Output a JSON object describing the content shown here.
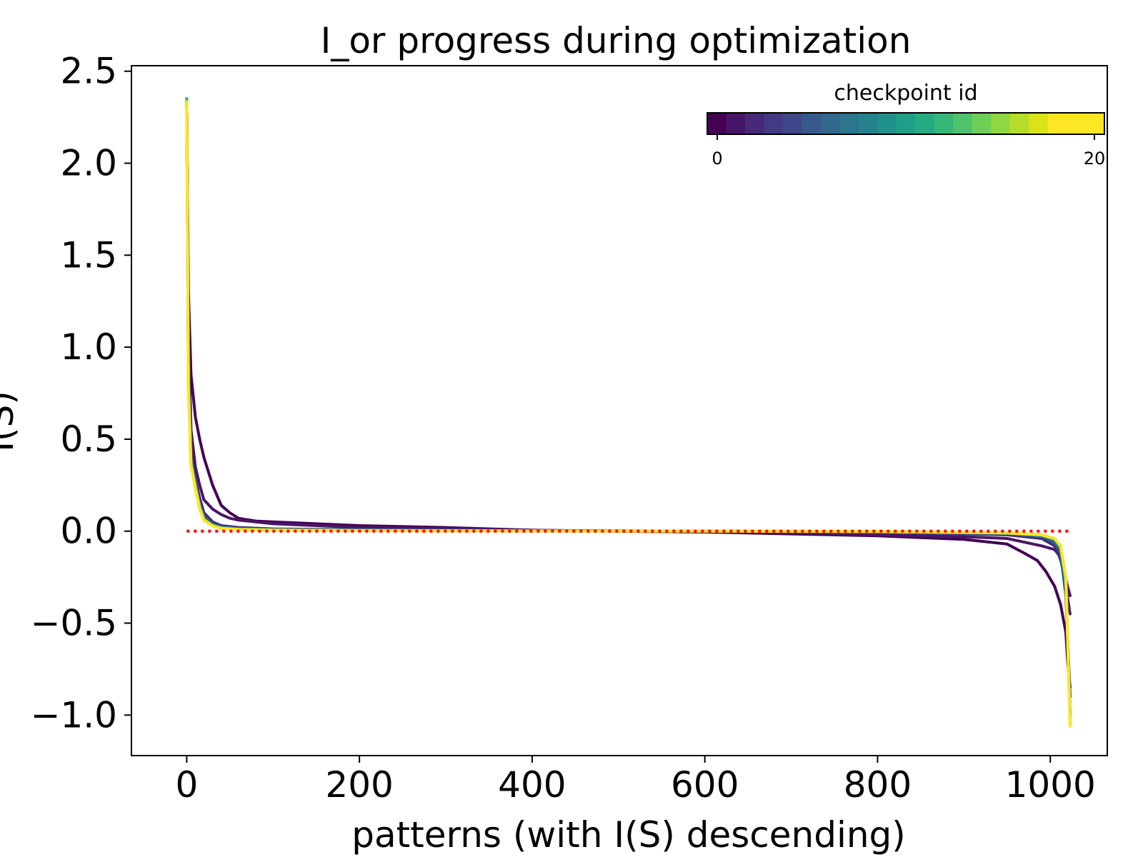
{
  "chart_data": {
    "type": "line",
    "title": "I_or progress during optimization",
    "xlabel": "patterns (with I(S) descending)",
    "ylabel": "I(S)",
    "xlim": [
      -64,
      1066
    ],
    "ylim": [
      -1.22,
      2.53
    ],
    "xticks": [
      0,
      200,
      400,
      600,
      800,
      1000
    ],
    "xtick_labels": [
      "0",
      "200",
      "400",
      "600",
      "800",
      "1000"
    ],
    "yticks": [
      -1.0,
      -0.5,
      0.0,
      0.5,
      1.0,
      1.5,
      2.0,
      2.5
    ],
    "ytick_labels": [
      "−1.0",
      "−0.5",
      "0.0",
      "0.5",
      "1.0",
      "1.5",
      "2.0",
      "2.5"
    ],
    "grid": false,
    "reference_line": {
      "y": 0.0,
      "color": "#ff0000",
      "style": "dotted",
      "x_range": [
        0,
        1023
      ]
    },
    "colorbar": {
      "label": "checkpoint id",
      "min": 0,
      "max": 20,
      "tick_labels": [
        "0",
        "20"
      ],
      "placement": "upper-right",
      "orientation": "horizontal",
      "colors": [
        "#440154",
        "#481668",
        "#482878",
        "#443983",
        "#3e4989",
        "#375a8c",
        "#31688e",
        "#2b758e",
        "#26828e",
        "#21918c",
        "#1f9e89",
        "#25ab82",
        "#35b779",
        "#4ec36b",
        "#6ece58",
        "#90d743",
        "#b5de2b",
        "#dae319",
        "#fde725",
        "#fde725",
        "#fde725"
      ]
    },
    "series": [
      {
        "checkpoint": 0,
        "color": "#440154",
        "x": [
          0,
          2,
          5,
          10,
          15,
          20,
          30,
          40,
          50,
          60,
          80,
          100,
          150,
          200,
          300,
          400,
          500,
          600,
          700,
          800,
          900,
          950,
          970,
          985,
          995,
          1005,
          1012,
          1018,
          1020,
          1023
        ],
        "y": [
          2.33,
          1.3,
          0.85,
          0.62,
          0.5,
          0.4,
          0.25,
          0.14,
          0.1,
          0.07,
          0.055,
          0.05,
          0.04,
          0.03,
          0.02,
          0.005,
          0.0,
          -0.005,
          -0.015,
          -0.025,
          -0.045,
          -0.07,
          -0.12,
          -0.16,
          -0.22,
          -0.3,
          -0.4,
          -0.55,
          -0.7,
          -0.85
        ]
      },
      {
        "checkpoint": 1,
        "color": "#481668",
        "x": [
          0,
          2,
          5,
          10,
          15,
          20,
          30,
          40,
          50,
          60,
          80,
          100,
          150,
          200,
          300,
          400,
          500,
          600,
          700,
          800,
          900,
          950,
          970,
          990,
          1005,
          1010,
          1015,
          1020,
          1023
        ],
        "y": [
          2.35,
          1.1,
          0.55,
          0.35,
          0.25,
          0.17,
          0.12,
          0.09,
          0.07,
          0.06,
          0.05,
          0.04,
          0.03,
          0.02,
          0.015,
          0.005,
          0.0,
          -0.005,
          -0.01,
          -0.02,
          -0.03,
          -0.04,
          -0.06,
          -0.08,
          -0.1,
          -0.13,
          -0.2,
          -0.3,
          -0.35
        ]
      },
      {
        "checkpoint": 2,
        "color": "#482878",
        "x": [
          0,
          2,
          5,
          10,
          15,
          20,
          30,
          40,
          60,
          100,
          200,
          400,
          600,
          800,
          950,
          990,
          1005,
          1012,
          1018,
          1023
        ],
        "y": [
          2.34,
          0.9,
          0.42,
          0.28,
          0.18,
          0.1,
          0.05,
          0.03,
          0.02,
          0.012,
          0.008,
          0.003,
          0.0,
          -0.005,
          -0.02,
          -0.04,
          -0.08,
          -0.15,
          -0.3,
          -0.45
        ]
      },
      {
        "checkpoint": 4,
        "color": "#3e4989",
        "x": [
          0,
          2,
          5,
          10,
          15,
          20,
          30,
          40,
          60,
          100,
          200,
          400,
          600,
          800,
          950,
          990,
          1005,
          1012,
          1018,
          1023
        ],
        "y": [
          2.34,
          0.85,
          0.4,
          0.26,
          0.15,
          0.08,
          0.04,
          0.025,
          0.015,
          0.01,
          0.006,
          0.002,
          0.0,
          -0.004,
          -0.015,
          -0.03,
          -0.06,
          -0.12,
          -0.35,
          -0.9
        ]
      },
      {
        "checkpoint": 8,
        "color": "#26828e",
        "x": [
          0,
          2,
          5,
          10,
          15,
          20,
          30,
          40,
          60,
          100,
          200,
          400,
          600,
          800,
          950,
          990,
          1005,
          1012,
          1018,
          1023
        ],
        "y": [
          2.35,
          0.82,
          0.38,
          0.25,
          0.14,
          0.07,
          0.035,
          0.02,
          0.012,
          0.008,
          0.005,
          0.002,
          0.0,
          -0.003,
          -0.012,
          -0.025,
          -0.05,
          -0.1,
          -0.3,
          -1.0
        ]
      },
      {
        "checkpoint": 12,
        "color": "#25ab82",
        "x": [
          0,
          2,
          5,
          10,
          15,
          20,
          30,
          40,
          60,
          100,
          200,
          400,
          600,
          800,
          950,
          990,
          1005,
          1012,
          1018,
          1023
        ],
        "y": [
          2.34,
          0.8,
          0.37,
          0.24,
          0.13,
          0.065,
          0.03,
          0.018,
          0.01,
          0.007,
          0.004,
          0.001,
          0.0,
          -0.003,
          -0.01,
          -0.02,
          -0.045,
          -0.09,
          -0.28,
          -1.03
        ]
      },
      {
        "checkpoint": 16,
        "color": "#90d743",
        "x": [
          0,
          2,
          5,
          10,
          15,
          20,
          30,
          40,
          60,
          100,
          200,
          400,
          600,
          800,
          950,
          990,
          1005,
          1012,
          1018,
          1023
        ],
        "y": [
          2.34,
          0.78,
          0.36,
          0.24,
          0.13,
          0.06,
          0.03,
          0.016,
          0.01,
          0.006,
          0.004,
          0.001,
          0.0,
          -0.002,
          -0.01,
          -0.02,
          -0.04,
          -0.08,
          -0.25,
          -1.05
        ]
      },
      {
        "checkpoint": 20,
        "color": "#fde725",
        "x": [
          0,
          2,
          5,
          10,
          15,
          20,
          30,
          40,
          60,
          100,
          200,
          400,
          600,
          800,
          950,
          990,
          1005,
          1012,
          1018,
          1023
        ],
        "y": [
          2.33,
          0.78,
          0.36,
          0.23,
          0.12,
          0.06,
          0.028,
          0.015,
          0.009,
          0.006,
          0.003,
          0.001,
          0.0,
          -0.002,
          -0.01,
          -0.02,
          -0.04,
          -0.08,
          -0.25,
          -1.06
        ]
      }
    ]
  }
}
